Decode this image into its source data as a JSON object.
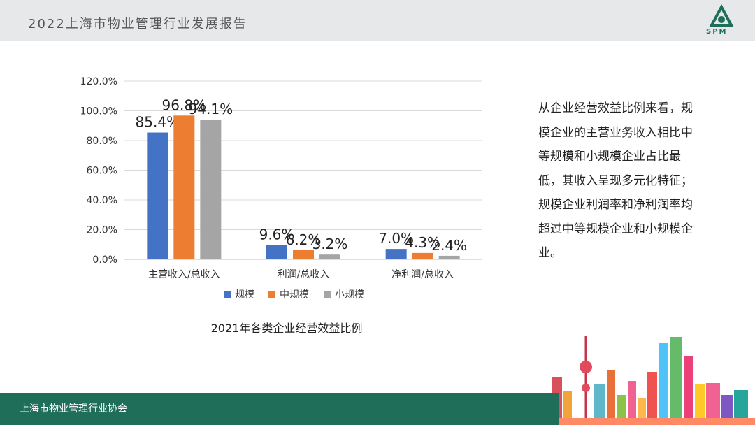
{
  "header": {
    "title": "2022上海市物业管理行业发展报告"
  },
  "logo": {
    "text": "SPM",
    "color": "#1f6e5a"
  },
  "footer": {
    "text": "上海市物业管理行业协会"
  },
  "side_text": "从企业经营效益比例来看，规模企业的主营业务收入相比中等规模和小规模企业占比最低，其收入呈现多元化特征；规模企业利润率和净利润率均超过中等规模企业和小规模企业。",
  "chart_data": {
    "type": "bar",
    "title": "2021年各类企业经营效益比例",
    "categories": [
      "主营收入/总收入",
      "利润/总收入",
      "净利润/总收入"
    ],
    "series": [
      {
        "name": "规模",
        "color": "#4472c4",
        "values": [
          85.4,
          9.6,
          7.0
        ],
        "labels": [
          "85.4%",
          "9.6%",
          "7.0%"
        ]
      },
      {
        "name": "中规模",
        "color": "#ed7d31",
        "values": [
          96.8,
          6.2,
          4.3
        ],
        "labels": [
          "96.8%",
          "6.2%",
          "4.3%"
        ]
      },
      {
        "name": "小规模",
        "color": "#a5a5a5",
        "values": [
          94.1,
          3.2,
          2.4
        ],
        "labels": [
          "94.1%",
          "3.2%",
          "2.4%"
        ]
      }
    ],
    "yticks": [
      "0.0%",
      "20.0%",
      "40.0%",
      "60.0%",
      "80.0%",
      "100.0%",
      "120.0%"
    ],
    "ylim": [
      0,
      120
    ],
    "grid": true,
    "legend": "bottom"
  }
}
